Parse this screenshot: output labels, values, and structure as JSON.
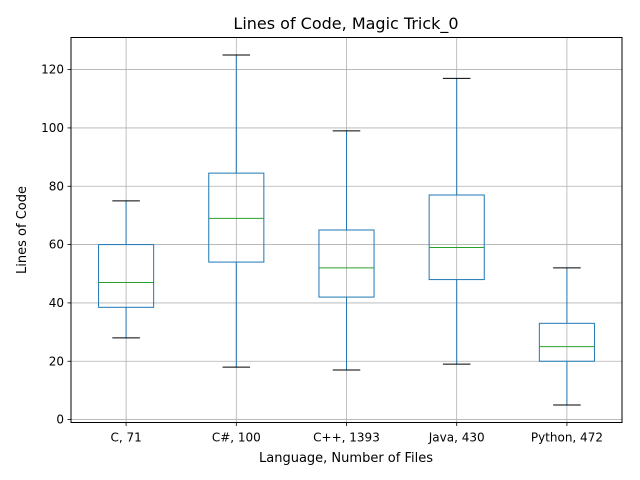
{
  "chart_data": {
    "type": "box",
    "title": "Lines of Code, Magic Trick_0",
    "xlabel": "Language, Number of Files",
    "ylabel": "Lines of Code",
    "ylim": [
      -1,
      131
    ],
    "yticks": [
      0,
      20,
      40,
      60,
      80,
      100,
      120
    ],
    "grid": true,
    "categories": [
      "C, 71",
      "C#, 100",
      "C++, 1393",
      "Java, 430",
      "Python, 472"
    ],
    "boxes": [
      {
        "whisker_low": 28,
        "q1": 38.5,
        "median": 47,
        "q3": 60,
        "whisker_high": 75
      },
      {
        "whisker_low": 18,
        "q1": 54,
        "median": 69,
        "q3": 84.5,
        "whisker_high": 125
      },
      {
        "whisker_low": 17,
        "q1": 42,
        "median": 52,
        "q3": 65,
        "whisker_high": 99
      },
      {
        "whisker_low": 19,
        "q1": 48,
        "median": 59,
        "q3": 77,
        "whisker_high": 117
      },
      {
        "whisker_low": 5,
        "q1": 20,
        "median": 25,
        "q3": 33,
        "whisker_high": 52
      }
    ],
    "colors": {
      "box": "#1f77b4",
      "median": "#2ca02c",
      "cap": "#000000",
      "grid": "#b0b0b0",
      "axes": "#000000"
    }
  }
}
